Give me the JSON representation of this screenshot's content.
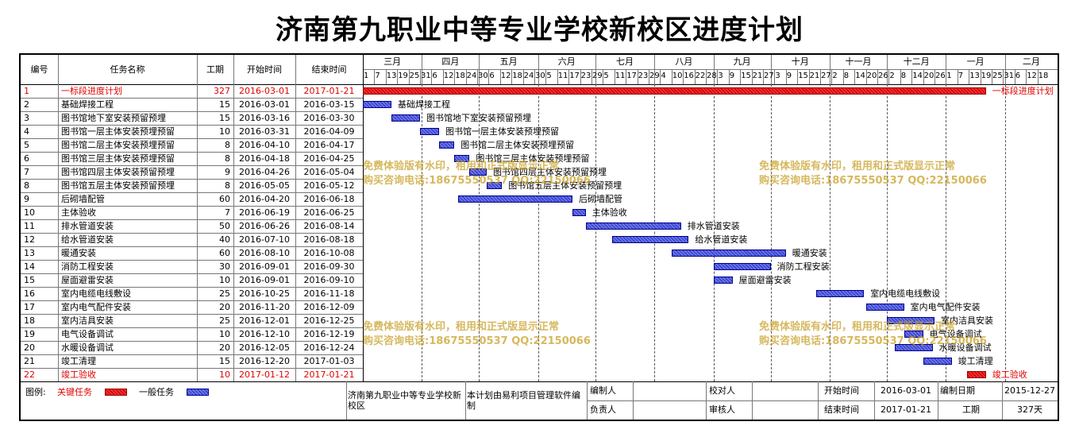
{
  "title": "济南第九职业中等专业学校新校区进度计划",
  "headers": {
    "id": "编号",
    "name": "任务名称",
    "dur": "工期",
    "start": "开始时间",
    "end": "结束时间"
  },
  "months": [
    "三月",
    "四月",
    "五月",
    "六月",
    "七月",
    "八月",
    "九月",
    "十月",
    "十一月",
    "十二月",
    "一月",
    "二月"
  ],
  "days": [
    "1",
    "7",
    "13",
    "19",
    "25",
    "31",
    "6",
    "12",
    "18",
    "24",
    "30",
    "6",
    "12",
    "18",
    "24",
    "30",
    "5",
    "11",
    "17",
    "23",
    "29",
    "5",
    "11",
    "17",
    "23",
    "29",
    "4",
    "10",
    "16",
    "22",
    "28",
    "3",
    "9",
    "15",
    "21",
    "27",
    "3",
    "9",
    "15",
    "21",
    "27",
    "2",
    "8",
    "14",
    "20",
    "26",
    "2",
    "8",
    "14",
    "20",
    "26",
    "1",
    "7",
    "13",
    "19",
    "25",
    "31",
    "6",
    "12",
    "18"
  ],
  "tasks": [
    {
      "id": "1",
      "name": "一标段进度计划",
      "dur": "327",
      "start": "2016-03-01",
      "end": "2017-01-21",
      "critical": true
    },
    {
      "id": "2",
      "name": "基础焊接工程",
      "dur": "15",
      "start": "2016-03-01",
      "end": "2016-03-15",
      "critical": false
    },
    {
      "id": "3",
      "name": "图书馆地下室安装预留预埋",
      "dur": "15",
      "start": "2016-03-16",
      "end": "2016-03-30",
      "critical": false
    },
    {
      "id": "4",
      "name": "图书馆一层主体安装预埋预留",
      "dur": "10",
      "start": "2016-03-31",
      "end": "2016-04-09",
      "critical": false
    },
    {
      "id": "5",
      "name": "图书馆二层主体安装预埋预留",
      "dur": "8",
      "start": "2016-04-10",
      "end": "2016-04-17",
      "critical": false
    },
    {
      "id": "6",
      "name": "图书馆三层主体安装预埋预留",
      "dur": "8",
      "start": "2016-04-18",
      "end": "2016-04-25",
      "critical": false
    },
    {
      "id": "7",
      "name": "图书馆四层主体安装预留预埋",
      "dur": "9",
      "start": "2016-04-26",
      "end": "2016-05-04",
      "critical": false
    },
    {
      "id": "8",
      "name": "图书馆五层主体安装预留预埋",
      "dur": "8",
      "start": "2016-05-05",
      "end": "2016-05-12",
      "critical": false
    },
    {
      "id": "9",
      "name": "后砌墙配管",
      "dur": "60",
      "start": "2016-04-20",
      "end": "2016-06-18",
      "critical": false
    },
    {
      "id": "10",
      "name": "主体验收",
      "dur": "7",
      "start": "2016-06-19",
      "end": "2016-06-25",
      "critical": false
    },
    {
      "id": "11",
      "name": "排水管道安装",
      "dur": "50",
      "start": "2016-06-26",
      "end": "2016-08-14",
      "critical": false
    },
    {
      "id": "12",
      "name": "给水管道安装",
      "dur": "40",
      "start": "2016-07-10",
      "end": "2016-08-18",
      "critical": false
    },
    {
      "id": "13",
      "name": "暖通安装",
      "dur": "60",
      "start": "2016-08-10",
      "end": "2016-10-08",
      "critical": false
    },
    {
      "id": "14",
      "name": "消防工程安装",
      "dur": "30",
      "start": "2016-09-01",
      "end": "2016-09-30",
      "critical": false
    },
    {
      "id": "15",
      "name": "屋面避雷安装",
      "dur": "10",
      "start": "2016-09-01",
      "end": "2016-09-10",
      "critical": false
    },
    {
      "id": "16",
      "name": "室内电缆电线敷设",
      "dur": "25",
      "start": "2016-10-25",
      "end": "2016-11-18",
      "critical": false
    },
    {
      "id": "17",
      "name": "室内电气配件安装",
      "dur": "20",
      "start": "2016-11-20",
      "end": "2016-12-09",
      "critical": false
    },
    {
      "id": "18",
      "name": "室内洁具安装",
      "dur": "25",
      "start": "2016-12-01",
      "end": "2016-12-25",
      "critical": false
    },
    {
      "id": "19",
      "name": "电气设备调试",
      "dur": "10",
      "start": "2016-12-10",
      "end": "2016-12-19",
      "critical": false
    },
    {
      "id": "20",
      "name": "水暖设备调试",
      "dur": "20",
      "start": "2016-12-05",
      "end": "2016-12-24",
      "critical": false
    },
    {
      "id": "21",
      "name": "竣工清理",
      "dur": "15",
      "start": "2016-12-20",
      "end": "2017-01-03",
      "critical": false
    },
    {
      "id": "22",
      "name": "竣工验收",
      "dur": "10",
      "start": "2017-01-12",
      "end": "2017-01-21",
      "critical": true
    }
  ],
  "watermark": {
    "line1": "免费体验版有水印，租用和正式版显示正常",
    "line2": "购买咨询电话:18675550537 QQ:22150066"
  },
  "legend": {
    "label": "图例:",
    "critical": "关键任务",
    "normal": "一般任务"
  },
  "colors": {
    "critical": "#e00000",
    "normal": "#3c48d6"
  },
  "footer": {
    "company": "济南第九职业中等专业学校新校区",
    "software": "本计划由易利项目管理软件编制",
    "compiler_label": "编制人",
    "compiler_value": "",
    "checker_label": "校对人",
    "checker_value": "",
    "owner_label": "负责人",
    "owner_value": "",
    "reviewer_label": "审核人",
    "reviewer_value": "",
    "start_label": "开始时间",
    "start_value": "2016-03-01",
    "enddate_label": "结束时间",
    "end_value": "2017-01-21",
    "compiled_label": "编制日期",
    "compiled_value": "2015-12-27",
    "duration_label": "工期",
    "duration_value": "327天"
  }
}
